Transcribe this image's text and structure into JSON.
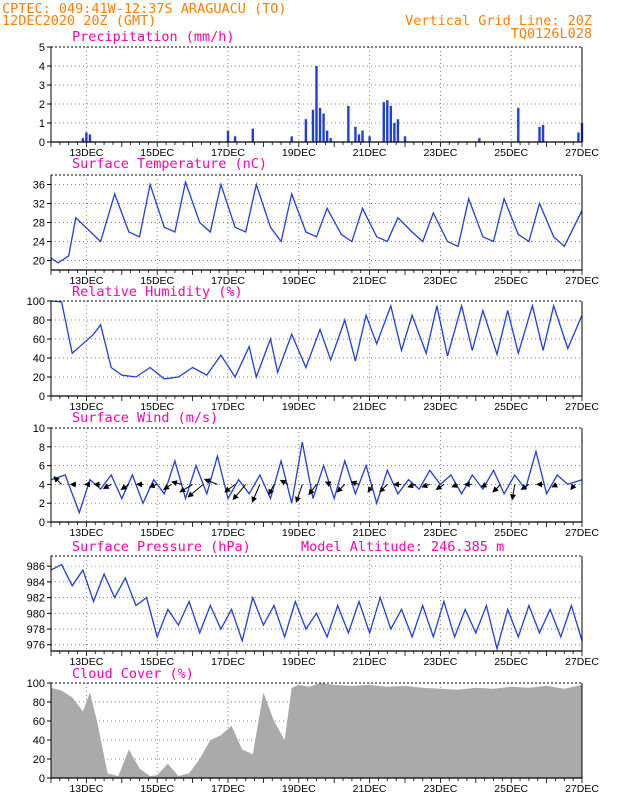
{
  "header": {
    "line1_left": "CPTEC:   049:41W-12:37S  ARAGUACU (TO)",
    "line2_left": "12DEC2020 20Z (GMT)",
    "line1_right": "Vertical Grid Line: 20Z",
    "line2_right": "TQ0126L028"
  },
  "colors": {
    "series": "#1f3fd8",
    "cloud": "#aaaaaa",
    "header": "#ff7f00",
    "title": "#ff00b0",
    "arrow": "#000000"
  },
  "x_axis_labels": [
    "13DEC",
    "15DEC",
    "17DEC",
    "19DEC",
    "21DEC",
    "23DEC",
    "25DEC",
    "27DEC"
  ],
  "chart_data": [
    {
      "type": "bar",
      "title": "Precipitation (mm/h)",
      "ylim": [
        0,
        5
      ],
      "yticks": [
        "0",
        "1",
        "2",
        "3",
        "4",
        "5"
      ],
      "x": [
        12.9,
        13.0,
        13.1,
        17.0,
        17.2,
        17.7,
        18.8,
        19.2,
        19.4,
        19.5,
        19.6,
        19.7,
        19.8,
        19.9,
        20.4,
        20.6,
        20.7,
        20.8,
        21.0,
        21.4,
        21.5,
        21.6,
        21.7,
        21.8,
        22.0,
        24.1,
        25.2,
        25.8,
        25.9,
        26.9,
        27.0
      ],
      "values": [
        0.2,
        0.5,
        0.4,
        0.6,
        0.3,
        0.7,
        0.3,
        1.2,
        1.7,
        4.0,
        1.8,
        1.5,
        0.6,
        0.2,
        1.9,
        0.8,
        0.4,
        0.6,
        0.3,
        2.1,
        2.2,
        1.9,
        1.0,
        1.2,
        0.3,
        0.2,
        1.8,
        0.8,
        0.9,
        0.5,
        1.0
      ]
    },
    {
      "type": "line",
      "title": "Surface Temperature (nC)",
      "ylim": [
        18,
        38
      ],
      "yticks": [
        "20",
        "24",
        "28",
        "32",
        "36"
      ],
      "x": [
        12.0,
        12.2,
        12.5,
        12.7,
        13.4,
        13.8,
        14.2,
        14.5,
        14.8,
        15.2,
        15.5,
        15.8,
        16.2,
        16.5,
        16.8,
        17.2,
        17.5,
        17.8,
        18.2,
        18.5,
        18.8,
        19.2,
        19.5,
        19.8,
        20.2,
        20.5,
        20.8,
        21.2,
        21.5,
        21.8,
        22.2,
        22.5,
        22.8,
        23.2,
        23.5,
        23.8,
        24.2,
        24.5,
        24.8,
        25.2,
        25.5,
        25.8,
        26.2,
        26.5,
        27.0
      ],
      "values": [
        20.5,
        19.5,
        21,
        29,
        24,
        34,
        26,
        25,
        36,
        27,
        26,
        36.5,
        28,
        26,
        36,
        27,
        26,
        36,
        27,
        24,
        34,
        26,
        25,
        31,
        25.5,
        24,
        31,
        25,
        24,
        29,
        26,
        24,
        30,
        24,
        23,
        33,
        25,
        24,
        33,
        25.5,
        24,
        32,
        25,
        23,
        30.5
      ]
    },
    {
      "type": "line",
      "title": "Relative Humidity (%)",
      "ylim": [
        0,
        100
      ],
      "yticks": [
        "0",
        "20",
        "40",
        "60",
        "80",
        "100"
      ],
      "x": [
        12.0,
        12.3,
        12.6,
        12.9,
        13.2,
        13.4,
        13.7,
        14.0,
        14.4,
        14.8,
        15.2,
        15.6,
        16.0,
        16.4,
        16.8,
        17.2,
        17.6,
        17.8,
        18.2,
        18.4,
        18.8,
        19.2,
        19.6,
        19.9,
        20.3,
        20.6,
        20.9,
        21.2,
        21.6,
        21.9,
        22.2,
        22.6,
        22.9,
        23.2,
        23.6,
        23.9,
        24.2,
        24.6,
        24.9,
        25.2,
        25.6,
        25.9,
        26.2,
        26.6,
        27.0
      ],
      "values": [
        100,
        99,
        45,
        55,
        65,
        75,
        30,
        22,
        20,
        30,
        18,
        20,
        30,
        22,
        43,
        20,
        52,
        20,
        60,
        25,
        65,
        30,
        70,
        38,
        80,
        37,
        85,
        55,
        95,
        48,
        85,
        45,
        95,
        42,
        95,
        48,
        90,
        44,
        90,
        45,
        95,
        48,
        95,
        50,
        85
      ]
    },
    {
      "type": "line",
      "title": "Surface Wind (m/s)",
      "ylim": [
        0,
        10
      ],
      "yticks": [
        "0",
        "2",
        "4",
        "6",
        "8",
        "10"
      ],
      "x": [
        12.0,
        12.4,
        12.8,
        13.1,
        13.4,
        13.7,
        14.0,
        14.3,
        14.6,
        14.9,
        15.2,
        15.5,
        15.8,
        16.1,
        16.4,
        16.7,
        17.0,
        17.3,
        17.6,
        17.9,
        18.2,
        18.5,
        18.8,
        19.1,
        19.4,
        19.7,
        20.0,
        20.3,
        20.6,
        20.9,
        21.2,
        21.5,
        21.8,
        22.1,
        22.4,
        22.7,
        23.0,
        23.3,
        23.6,
        23.9,
        24.2,
        24.5,
        24.8,
        25.1,
        25.4,
        25.7,
        26.0,
        26.3,
        26.6,
        27.0
      ],
      "values": [
        4.5,
        5.0,
        1.0,
        4.5,
        3.5,
        5.0,
        2.5,
        5.0,
        2.0,
        4.5,
        3.0,
        6.5,
        2.5,
        6.0,
        3.0,
        7.0,
        2.5,
        4.5,
        3.0,
        5.0,
        2.5,
        6.5,
        2.0,
        8.5,
        2.5,
        6.0,
        2.5,
        6.5,
        3.0,
        6.0,
        2.0,
        5.5,
        3.0,
        4.5,
        3.5,
        5.5,
        4.0,
        5.0,
        3.0,
        5.0,
        3.5,
        5.5,
        3.0,
        5.0,
        3.5,
        7.5,
        3.0,
        5.0,
        4.0,
        4.5
      ]
    },
    {
      "type": "line",
      "title": "Surface Pressure (hPa)",
      "subtitle": "Model Altitude: 246.385 m",
      "ylim": [
        975.2,
        987.3
      ],
      "yticks": [
        "976",
        "978",
        "980",
        "982",
        "984",
        "986"
      ],
      "x": [
        12.0,
        12.3,
        12.6,
        12.9,
        13.2,
        13.5,
        13.8,
        14.1,
        14.4,
        14.7,
        15.0,
        15.3,
        15.6,
        15.9,
        16.2,
        16.5,
        16.8,
        17.1,
        17.4,
        17.7,
        18.0,
        18.3,
        18.6,
        18.9,
        19.2,
        19.5,
        19.8,
        20.1,
        20.4,
        20.7,
        21.0,
        21.3,
        21.6,
        21.9,
        22.2,
        22.5,
        22.8,
        23.1,
        23.4,
        23.7,
        24.0,
        24.3,
        24.6,
        24.9,
        25.2,
        25.5,
        25.8,
        26.1,
        26.4,
        26.7,
        27.0
      ],
      "values": [
        985.5,
        986.2,
        983.5,
        985.5,
        981.5,
        985.0,
        982.0,
        984.5,
        981.0,
        982.0,
        977.0,
        980.5,
        978.5,
        981.5,
        977.5,
        981.0,
        978.0,
        980.5,
        976.5,
        982.0,
        978.5,
        981.0,
        977.0,
        981.5,
        978.0,
        980.0,
        977.0,
        981.0,
        977.5,
        981.5,
        977.5,
        982.0,
        978.0,
        980.5,
        977.0,
        981.0,
        977.0,
        981.5,
        977.0,
        980.5,
        977.5,
        981.0,
        975.5,
        980.5,
        977.0,
        981.0,
        977.5,
        980.5,
        977.0,
        981.0,
        976.5
      ]
    },
    {
      "type": "area",
      "title": "Cloud Cover (%)",
      "ylim": [
        0,
        100
      ],
      "yticks": [
        "0",
        "20",
        "40",
        "60",
        "80",
        "100"
      ],
      "x": [
        12.0,
        12.3,
        12.6,
        12.9,
        13.1,
        13.3,
        13.6,
        13.9,
        14.2,
        14.5,
        14.8,
        15.0,
        15.3,
        15.6,
        15.9,
        16.2,
        16.5,
        16.8,
        17.1,
        17.4,
        17.7,
        18.0,
        18.3,
        18.6,
        18.8,
        19.0,
        19.3,
        19.6,
        20.0,
        20.5,
        21.0,
        21.5,
        22.0,
        22.5,
        23.0,
        23.5,
        24.0,
        24.5,
        25.0,
        25.5,
        26.0,
        26.5,
        27.0
      ],
      "values": [
        95,
        92,
        85,
        70,
        90,
        60,
        5,
        2,
        30,
        10,
        2,
        3,
        15,
        2,
        5,
        20,
        40,
        45,
        55,
        30,
        25,
        90,
        60,
        40,
        95,
        98,
        96,
        100,
        98,
        97,
        98,
        96,
        97,
        95,
        94,
        93,
        95,
        94,
        96,
        95,
        97,
        94,
        98
      ]
    }
  ],
  "wind_arrows": {
    "x": [
      12.3,
      12.7,
      13.1,
      13.4,
      13.7,
      14.2,
      14.6,
      15.0,
      15.4,
      15.7,
      16.0,
      16.3,
      16.7,
      17.2,
      17.5,
      17.9,
      18.3,
      18.7,
      19.1,
      19.5,
      19.9,
      20.3,
      20.7,
      21.1,
      21.5,
      21.9,
      22.3,
      22.7,
      23.1,
      23.5,
      23.9,
      24.3,
      24.7,
      25.1,
      25.5,
      25.9,
      26.3,
      26.8
    ],
    "u": [
      -1.5,
      -1,
      -1,
      -1.2,
      -1.5,
      -1.5,
      -1.2,
      -1.5,
      -1.5,
      -2,
      -2.5,
      -3,
      -2.5,
      -2,
      -2.5,
      -1.5,
      -1,
      -1.5,
      -1.2,
      -1.5,
      -1,
      -1.5,
      -1.5,
      -1,
      -1.5,
      -1.5,
      -1.5,
      -1.5,
      -1.5,
      -1.2,
      -1.5,
      -1,
      -1.5,
      -0.5,
      -1.5,
      -1.2,
      -1,
      -0.8
    ],
    "v": [
      1.5,
      0,
      0,
      0,
      -0.8,
      -1,
      0,
      -0.5,
      -1,
      0.5,
      -1.5,
      -2.5,
      1,
      -1.5,
      -3,
      -3.5,
      -2,
      0.8,
      -3.5,
      -2,
      0.5,
      -1.5,
      0.5,
      -1.5,
      -1.5,
      0,
      -0.5,
      -0.5,
      -1,
      -0.5,
      0,
      -0.5,
      -1.5,
      -3,
      -1,
      0,
      -0.5,
      -1
    ]
  }
}
